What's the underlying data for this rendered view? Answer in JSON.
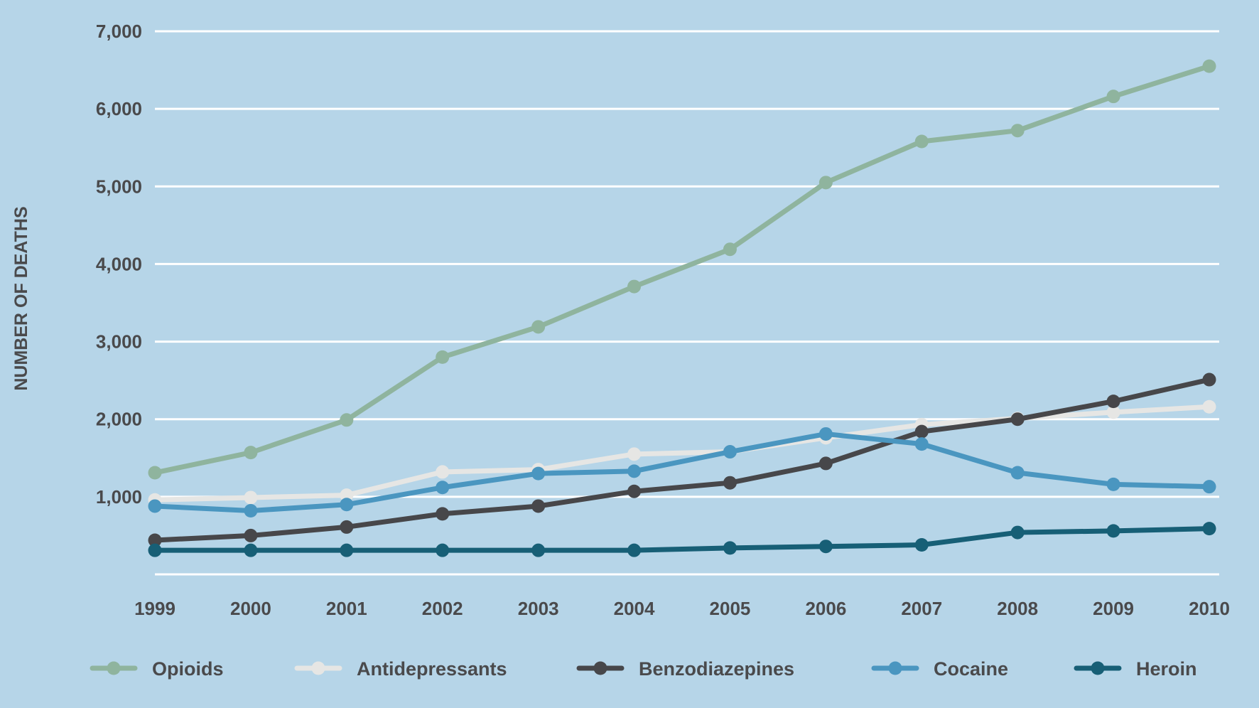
{
  "chart_data": {
    "type": "line",
    "title": "",
    "xlabel": "",
    "ylabel": "NUMBER OF DEATHS",
    "ylim": [
      0,
      7000
    ],
    "y_ticks": [
      1000,
      2000,
      3000,
      4000,
      5000,
      6000,
      7000
    ],
    "y_tick_labels": [
      "1,000",
      "2,000",
      "3,000",
      "4,000",
      "5,000",
      "6,000",
      "7,000"
    ],
    "grid": true,
    "legend_position": "bottom",
    "x": [
      "1999",
      "2000",
      "2001",
      "2002",
      "2003",
      "2004",
      "2005",
      "2006",
      "2007",
      "2008",
      "2009",
      "2010"
    ],
    "series": [
      {
        "name": "Opioids",
        "color": "#8fb49e",
        "values": [
          1310,
          1570,
          1990,
          2800,
          3190,
          3710,
          4190,
          5050,
          5580,
          5720,
          6160,
          6550
        ]
      },
      {
        "name": "Antidepressants",
        "color": "#e6e6e4",
        "values": [
          960,
          990,
          1020,
          1320,
          1350,
          1550,
          1580,
          1760,
          1930,
          2010,
          2090,
          2160
        ]
      },
      {
        "name": "Benzodiazepines",
        "color": "#47474a",
        "values": [
          440,
          500,
          610,
          780,
          880,
          1070,
          1180,
          1430,
          1840,
          2000,
          2230,
          2510
        ]
      },
      {
        "name": "Cocaine",
        "color": "#4a96c0",
        "values": [
          880,
          820,
          900,
          1120,
          1300,
          1330,
          1580,
          1810,
          1680,
          1310,
          1160,
          1130
        ]
      },
      {
        "name": "Heroin",
        "color": "#175f76",
        "values": [
          310,
          310,
          310,
          310,
          310,
          310,
          340,
          360,
          380,
          540,
          560,
          590
        ]
      }
    ]
  }
}
